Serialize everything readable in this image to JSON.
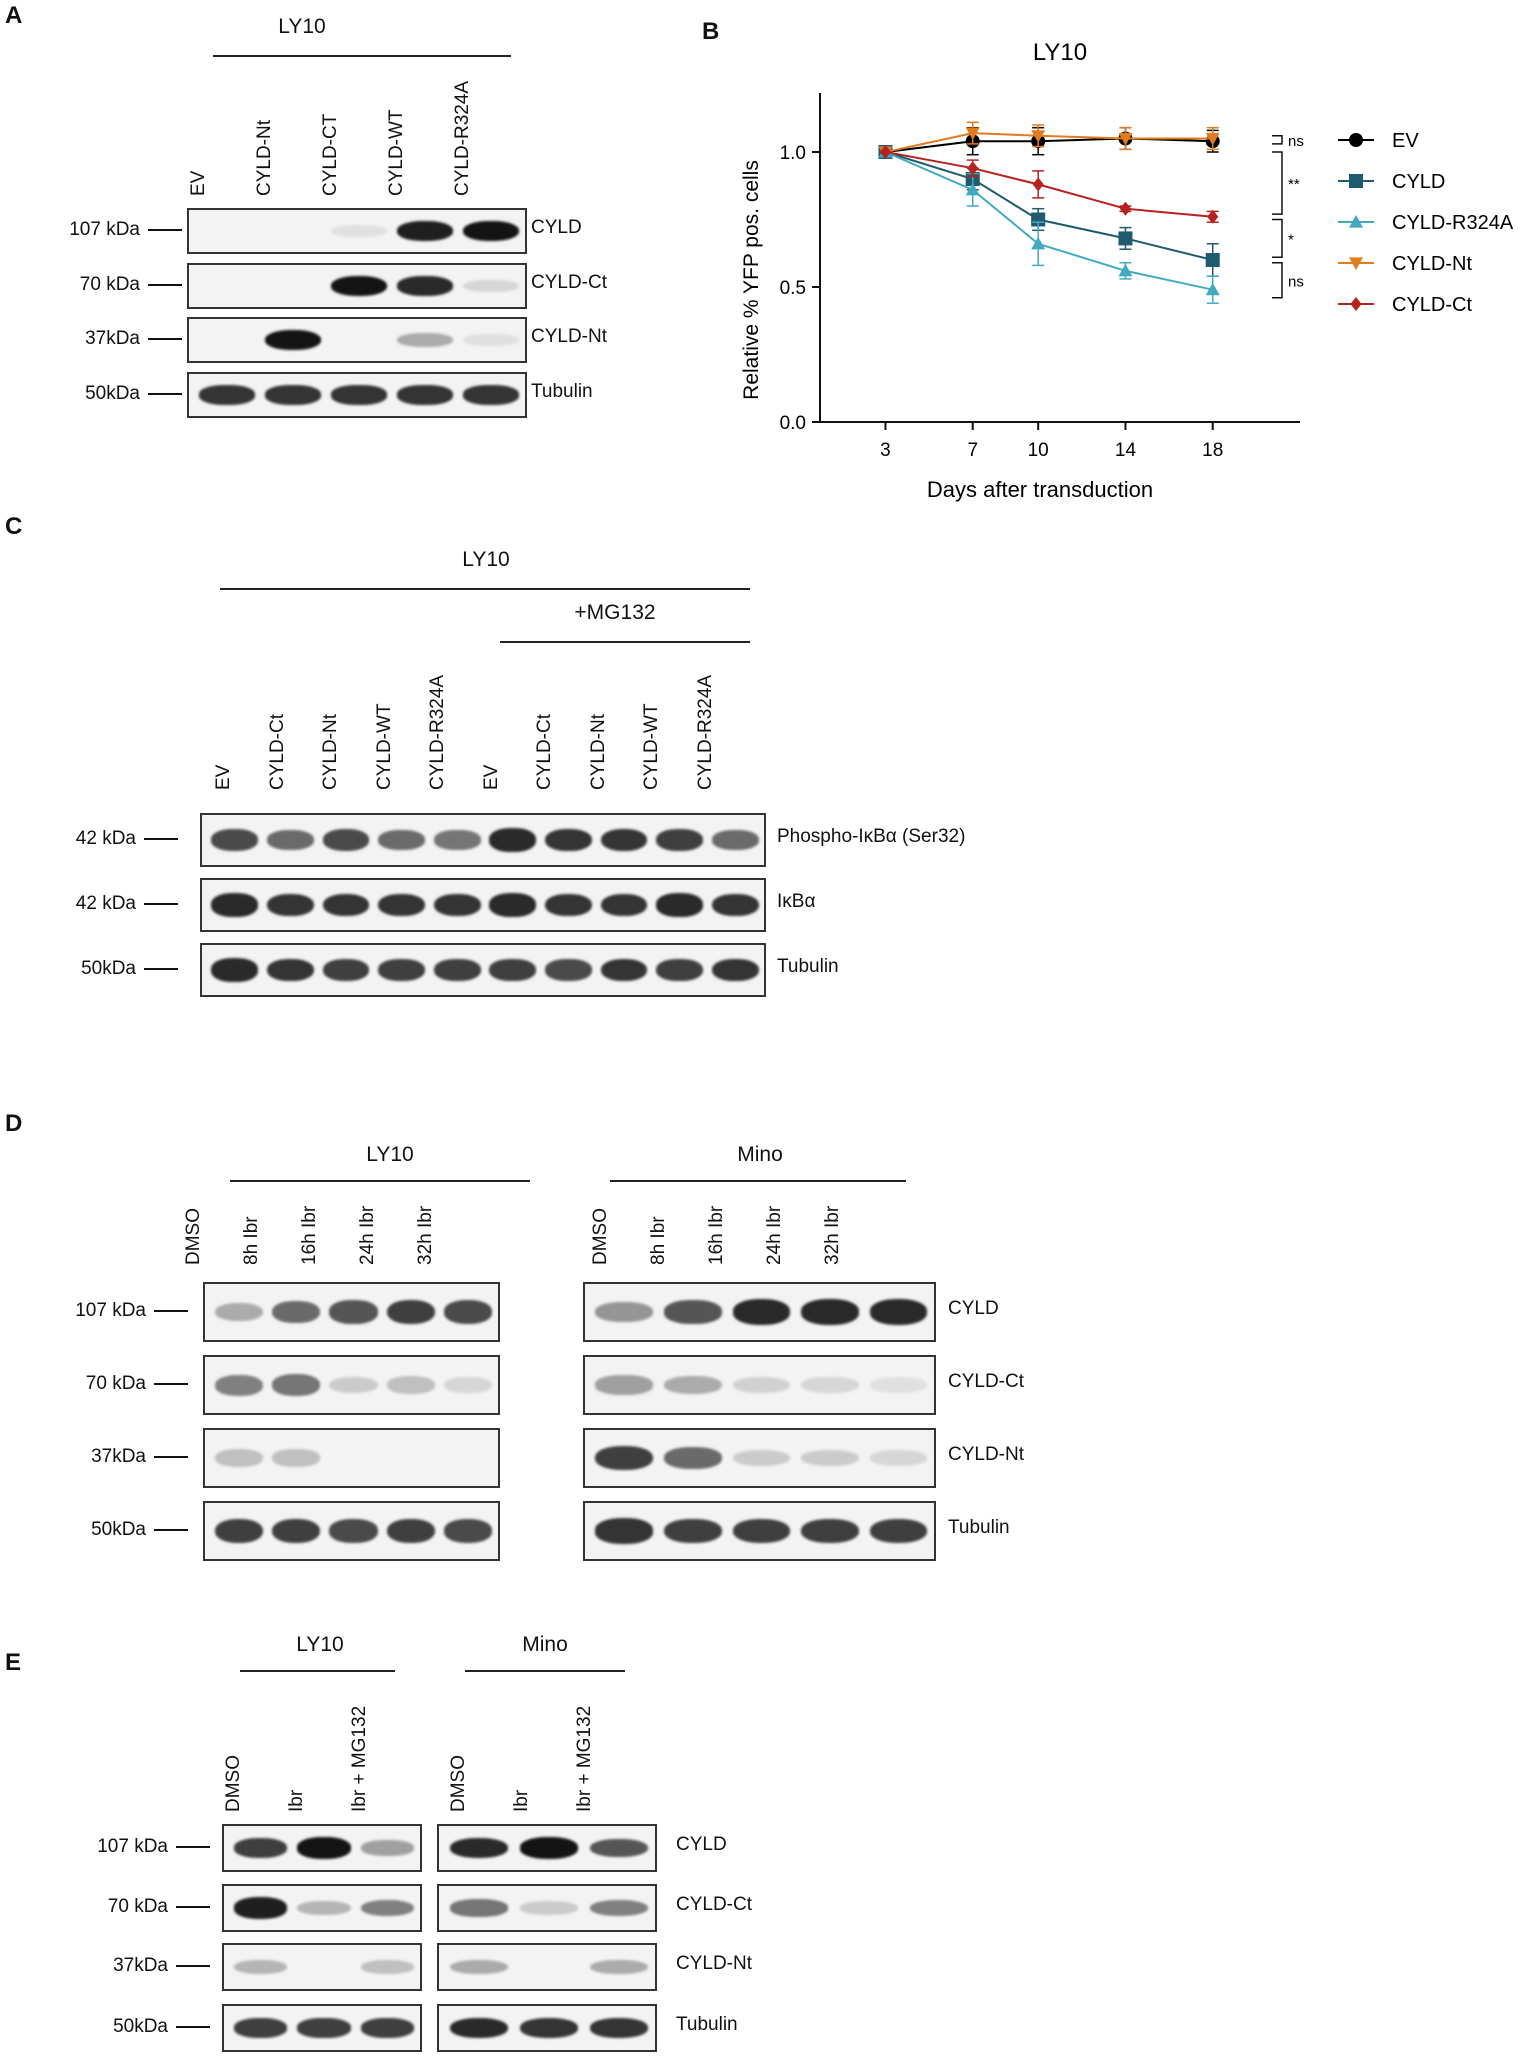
{
  "panel_a": {
    "label": "A",
    "group": "LY10",
    "lanes": [
      "EV",
      "CYLD-Nt",
      "CYLD-CT",
      "CYLD-WT",
      "CYLD-R324A"
    ],
    "rows": [
      {
        "marker": "107 kDa",
        "protein": "CYLD"
      },
      {
        "marker": "70 kDa",
        "protein": "CYLD-Ct"
      },
      {
        "marker": "37kDa",
        "protein": "CYLD-Nt"
      },
      {
        "marker": "50kDa",
        "protein": "Tubulin"
      }
    ],
    "band_intensity": [
      [
        0,
        0,
        0.05,
        0.95,
        1.0
      ],
      [
        0,
        0,
        1.0,
        0.9,
        0.1
      ],
      [
        0,
        1.0,
        0,
        0.3,
        0.05
      ],
      [
        0.85,
        0.85,
        0.85,
        0.85,
        0.85
      ]
    ]
  },
  "panel_b": {
    "label": "B",
    "chart_data": {
      "type": "line",
      "title": "LY10",
      "xlabel": "Days after transduction",
      "ylabel": "Relative %  YFP pos. cells",
      "x": [
        3,
        7,
        10,
        14,
        18
      ],
      "xlim": [
        0,
        22
      ],
      "ylim": [
        0,
        1.2
      ],
      "yticks": [
        "0.0",
        "0.5",
        "1.0"
      ],
      "xticks": [
        "3",
        "7",
        "10",
        "14",
        "18"
      ],
      "legend_position": "right",
      "series": [
        {
          "name": "EV",
          "values": [
            1.0,
            1.04,
            1.04,
            1.05,
            1.04
          ],
          "err": [
            0,
            0.05,
            0.05,
            0.04,
            0.04
          ],
          "color": "#000000",
          "marker": "circle"
        },
        {
          "name": "CYLD",
          "values": [
            1.0,
            0.9,
            0.75,
            0.68,
            0.6
          ],
          "err": [
            0,
            0.04,
            0.04,
            0.04,
            0.06
          ],
          "color": "#1f5a6e",
          "marker": "square"
        },
        {
          "name": "CYLD-R324A",
          "values": [
            1.0,
            0.86,
            0.66,
            0.56,
            0.49
          ],
          "err": [
            0,
            0.06,
            0.08,
            0.03,
            0.05
          ],
          "color": "#42aabf",
          "marker": "triangle-up"
        },
        {
          "name": "CYLD-Nt",
          "values": [
            1.0,
            1.07,
            1.06,
            1.05,
            1.05
          ],
          "err": [
            0,
            0.04,
            0.04,
            0.04,
            0.04
          ],
          "color": "#e07b1e",
          "marker": "triangle-down"
        },
        {
          "name": "CYLD-Ct",
          "values": [
            1.0,
            0.94,
            0.88,
            0.79,
            0.76
          ],
          "err": [
            0,
            0.03,
            0.05,
            0.01,
            0.02
          ],
          "color": "#b5221f",
          "marker": "diamond"
        }
      ],
      "annotations": [
        "ns",
        "**",
        "*",
        "ns"
      ]
    }
  },
  "panel_c": {
    "label": "C",
    "group": "LY10",
    "subgroup": "+MG132",
    "lanes": [
      "EV",
      "CYLD-Ct",
      "CYLD-Nt",
      "CYLD-WT",
      "CYLD-R324A",
      "EV",
      "CYLD-Ct",
      "CYLD-Nt",
      "CYLD-WT",
      "CYLD-R324A"
    ],
    "rows": [
      {
        "marker": "42 kDa",
        "protein": "Phospho-IκBα (Ser32)"
      },
      {
        "marker": "42 kDa",
        "protein": "IκBα"
      },
      {
        "marker": "50kDa",
        "protein": "Tubulin"
      }
    ],
    "band_intensity": [
      [
        0.75,
        0.6,
        0.75,
        0.6,
        0.55,
        0.9,
        0.85,
        0.85,
        0.8,
        0.6
      ],
      [
        0.9,
        0.85,
        0.85,
        0.85,
        0.85,
        0.9,
        0.85,
        0.85,
        0.9,
        0.85
      ],
      [
        0.9,
        0.85,
        0.8,
        0.8,
        0.8,
        0.8,
        0.75,
        0.85,
        0.8,
        0.85
      ]
    ]
  },
  "panel_d": {
    "label": "D",
    "groups": [
      "LY10",
      "Mino"
    ],
    "lanes": [
      "DMSO",
      "8h Ibr",
      "16h Ibr",
      "24h Ibr",
      "32h Ibr"
    ],
    "rows": [
      {
        "marker": "107 kDa",
        "protein": "CYLD"
      },
      {
        "marker": "70 kDa",
        "protein": "CYLD-Ct"
      },
      {
        "marker": "37kDa",
        "protein": "CYLD-Nt"
      },
      {
        "marker": "50kDa",
        "protein": "Tubulin"
      }
    ],
    "band_intensity_ly10": [
      [
        0.3,
        0.6,
        0.7,
        0.8,
        0.75
      ],
      [
        0.5,
        0.55,
        0.15,
        0.2,
        0.1
      ],
      [
        0.2,
        0.2,
        0,
        0,
        0
      ],
      [
        0.8,
        0.8,
        0.75,
        0.8,
        0.75
      ]
    ],
    "band_intensity_mino": [
      [
        0.4,
        0.7,
        0.9,
        0.9,
        0.9
      ],
      [
        0.35,
        0.3,
        0.12,
        0.1,
        0.05
      ],
      [
        0.8,
        0.6,
        0.15,
        0.15,
        0.1
      ],
      [
        0.85,
        0.8,
        0.8,
        0.8,
        0.8
      ]
    ]
  },
  "panel_e": {
    "label": "E",
    "groups": [
      "LY10",
      "Mino"
    ],
    "lanes": [
      "DMSO",
      "Ibr",
      "Ibr + MG132"
    ],
    "rows": [
      {
        "marker": "107 kDa",
        "protein": "CYLD"
      },
      {
        "marker": "70 kDa",
        "protein": "CYLD-Ct"
      },
      {
        "marker": "37kDa",
        "protein": "CYLD-Nt"
      },
      {
        "marker": "50kDa",
        "protein": "Tubulin"
      }
    ],
    "band_intensity_ly10": [
      [
        0.8,
        1.0,
        0.35
      ],
      [
        0.95,
        0.25,
        0.5
      ],
      [
        0.25,
        0,
        0.2
      ],
      [
        0.8,
        0.8,
        0.8
      ]
    ],
    "band_intensity_mino": [
      [
        0.9,
        1.0,
        0.7
      ],
      [
        0.55,
        0.15,
        0.5
      ],
      [
        0.3,
        0,
        0.3
      ],
      [
        0.9,
        0.85,
        0.85
      ]
    ]
  }
}
